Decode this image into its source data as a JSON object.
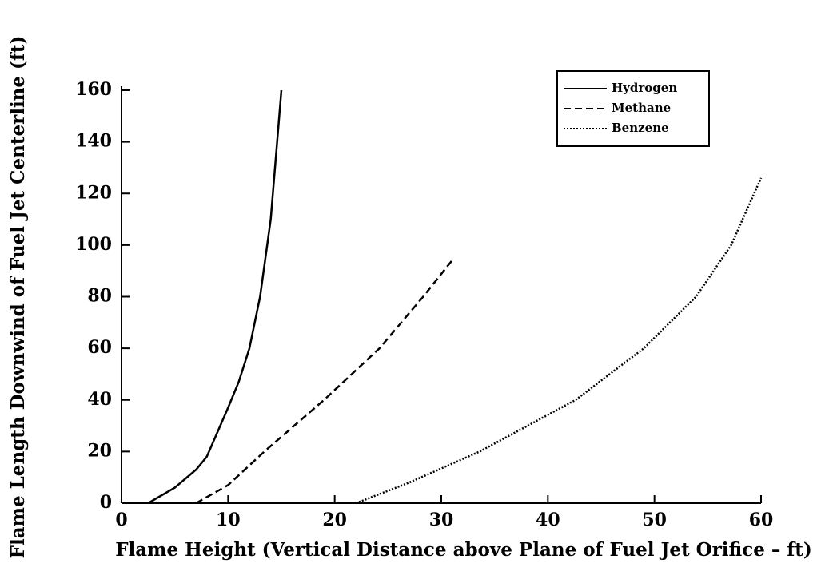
{
  "chart_data": {
    "type": "line",
    "xlabel": "Flame Height (Vertical Distance above Plane of Fuel Jet Orifice – ft)",
    "ylabel": "Flame Length Downwind of Fuel Jet Centerline  (ft)",
    "xlim": [
      0,
      60
    ],
    "xticks": [
      0,
      10,
      20,
      30,
      40,
      50,
      60
    ],
    "ylim": [
      0,
      160
    ],
    "yticks": [
      0,
      20,
      40,
      60,
      80,
      100,
      120,
      140,
      160
    ],
    "legend": "upper right",
    "series": [
      {
        "name": "Hydrogen",
        "color": "#000000",
        "dash": "solid",
        "x": [
          2.5,
          5,
          7,
          8,
          10,
          11,
          12,
          13,
          14,
          14.5,
          15
        ],
        "values": [
          0,
          6,
          13,
          18,
          37,
          47,
          60,
          80,
          110,
          135,
          160
        ]
      },
      {
        "name": "Methane",
        "color": "#000000",
        "dash": "dashed",
        "x": [
          7,
          10,
          13.4,
          19,
          24.2,
          28.3,
          31
        ],
        "values": [
          0,
          7,
          20,
          40,
          60,
          80,
          94
        ]
      },
      {
        "name": "Benzene",
        "color": "#000000",
        "dash": "dotted",
        "x": [
          22,
          27,
          33.6,
          42.6,
          49,
          53.9,
          57.2,
          60
        ],
        "values": [
          0,
          8,
          20,
          40,
          60,
          80,
          100,
          126
        ]
      }
    ]
  }
}
